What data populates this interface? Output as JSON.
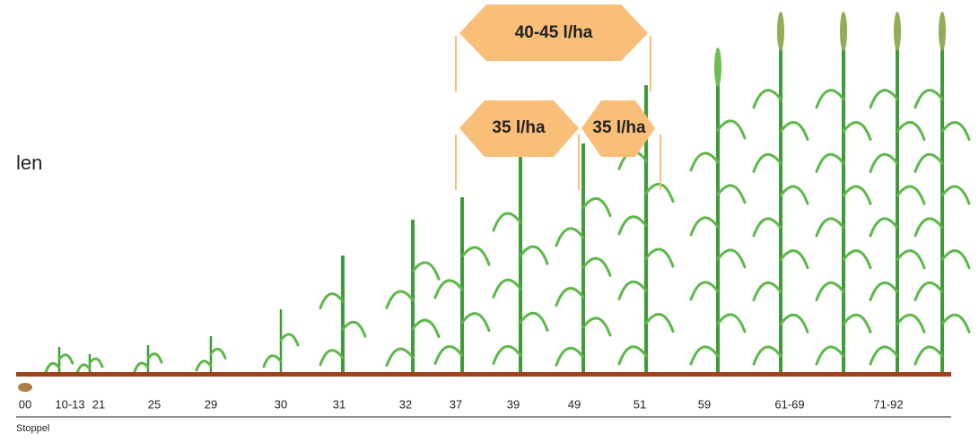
{
  "side_text": "len",
  "doses": [
    "40-45 l/ha",
    "35 l/ha",
    "35 l/ha"
  ],
  "stages": [
    "00",
    "10-13",
    "21",
    "25",
    "29",
    "30",
    "31",
    "32",
    "37",
    "39",
    "49",
    "51",
    "59",
    "61-69",
    "71-92"
  ],
  "footer": "Stoppel"
}
